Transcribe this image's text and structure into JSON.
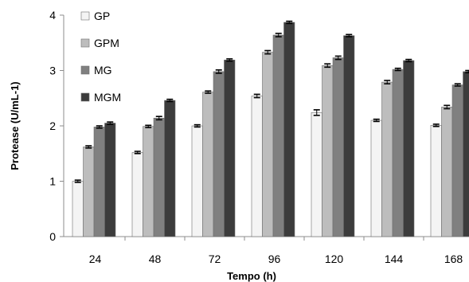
{
  "chart_data": {
    "type": "bar",
    "xlabel": "Tempo (h)",
    "ylabel": "Protease (U/mL-1)",
    "ylim": [
      0,
      4
    ],
    "yticks": [
      0,
      1,
      2,
      3,
      4
    ],
    "grid": false,
    "legend_position": "top-left",
    "categories": [
      "24",
      "48",
      "72",
      "96",
      "120",
      "144",
      "168"
    ],
    "series": [
      {
        "name": "GP",
        "color": "#f4f4f4",
        "values": [
          1.0,
          1.52,
          2.0,
          2.54,
          2.24,
          2.1,
          2.01
        ],
        "errors": [
          0.02,
          0.02,
          0.02,
          0.03,
          0.05,
          0.02,
          0.02
        ]
      },
      {
        "name": "GPM",
        "color": "#bdbdbd",
        "values": [
          1.62,
          1.99,
          2.61,
          3.33,
          3.09,
          2.79,
          2.34
        ],
        "errors": [
          0.02,
          0.02,
          0.02,
          0.03,
          0.03,
          0.03,
          0.03
        ]
      },
      {
        "name": "MG",
        "color": "#808080",
        "values": [
          1.98,
          2.14,
          2.98,
          3.64,
          3.23,
          3.02,
          2.74
        ],
        "errors": [
          0.02,
          0.03,
          0.03,
          0.03,
          0.03,
          0.02,
          0.02
        ]
      },
      {
        "name": "MGM",
        "color": "#3c3c3c",
        "values": [
          2.05,
          2.46,
          3.19,
          3.87,
          3.63,
          3.18,
          2.98
        ],
        "errors": [
          0.02,
          0.02,
          0.02,
          0.02,
          0.02,
          0.02,
          0.02
        ]
      }
    ]
  }
}
